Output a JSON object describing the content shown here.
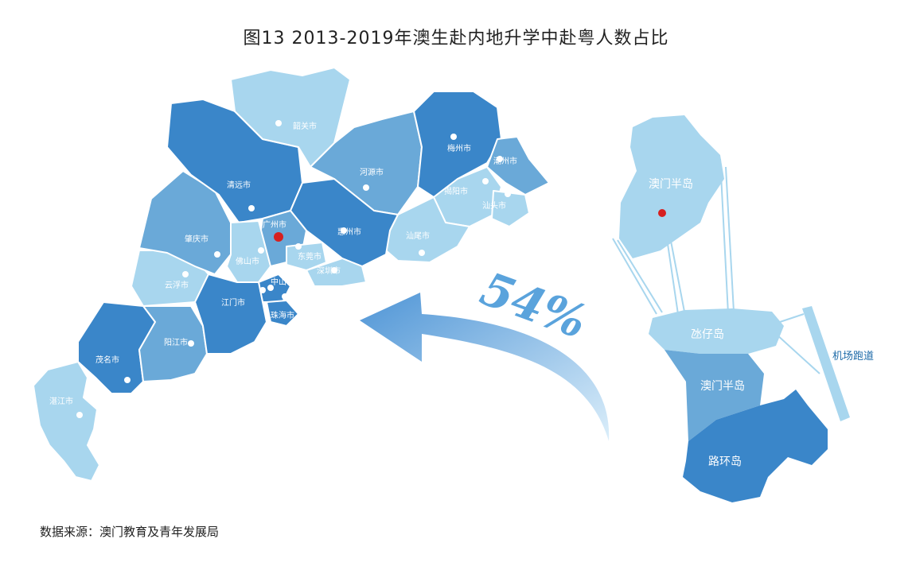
{
  "title": "图13 2013-2019年澳生赴内地升学中赴粤人数占比",
  "source": "数据来源：澳门教育及青年发展局",
  "percentage": "54%",
  "colors": {
    "light": "#a8d6ee",
    "mid": "#6aa9d8",
    "dark": "#3a86c9",
    "highlight_dot": "#d62020",
    "runway_label": "#1d6aa8"
  },
  "cities": [
    {
      "name": "韶关市"
    },
    {
      "name": "梅州市"
    },
    {
      "name": "潮州市"
    },
    {
      "name": "河源市"
    },
    {
      "name": "清远市"
    },
    {
      "name": "揭阳市"
    },
    {
      "name": "汕头市"
    },
    {
      "name": "广州市"
    },
    {
      "name": "惠州市"
    },
    {
      "name": "汕尾市"
    },
    {
      "name": "肇庆市"
    },
    {
      "name": "佛山市"
    },
    {
      "name": "东莞市"
    },
    {
      "name": "深圳市"
    },
    {
      "name": "云浮市"
    },
    {
      "name": "江门市"
    },
    {
      "name": "中山市"
    },
    {
      "name": "珠海市"
    },
    {
      "name": "阳江市"
    },
    {
      "name": "茂名市"
    },
    {
      "name": "湛江市"
    }
  ],
  "macau": {
    "peninsula_top": "澳门半岛",
    "taipa": "氹仔岛",
    "peninsula_bottom": "澳门半岛",
    "coloane": "路环岛",
    "runway": "机场跑道"
  }
}
